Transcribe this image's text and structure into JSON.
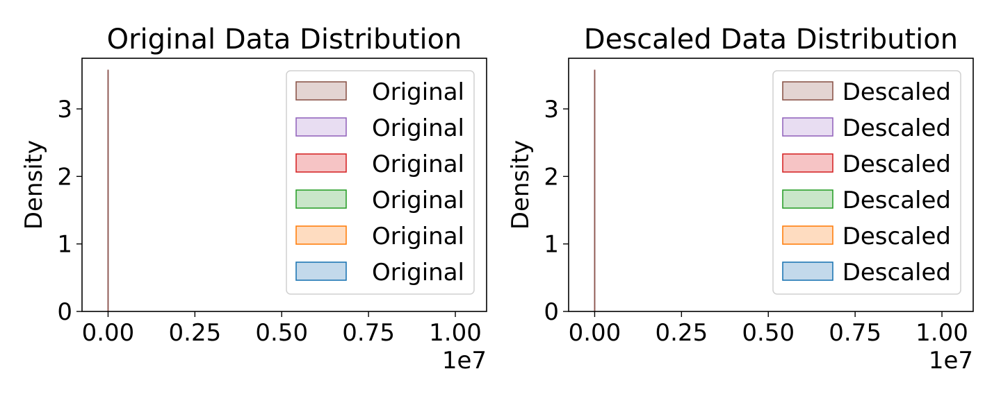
{
  "chart_data": [
    {
      "type": "area",
      "title": "Original Data Distribution",
      "xlabel": "",
      "ylabel": "Density",
      "x_offset_label": "1e7",
      "xlim": [
        -0.075,
        1.09
      ],
      "ylim": [
        0,
        3.75
      ],
      "xticks": [
        0.0,
        0.25,
        0.5,
        0.75,
        1.0
      ],
      "xtick_labels": [
        "0.00",
        "0.25",
        "0.50",
        "0.75",
        "1.00"
      ],
      "yticks": [
        0,
        1,
        2,
        3
      ],
      "ytick_labels": [
        "0",
        "1",
        "2",
        "3"
      ],
      "legend_position": "upper right",
      "grid": false,
      "spike": {
        "x": 0.0,
        "y": 3.58
      },
      "series": [
        {
          "name": "Original",
          "color": "#8c564b",
          "fill": "#e3d4d2"
        },
        {
          "name": "Original",
          "color": "#9467bd",
          "fill": "#e8ddf2"
        },
        {
          "name": "Original",
          "color": "#d62728",
          "fill": "#f6c4c5"
        },
        {
          "name": "Original",
          "color": "#2ca02c",
          "fill": "#c9e6c9"
        },
        {
          "name": "Original",
          "color": "#ff7f0e",
          "fill": "#fedcc0"
        },
        {
          "name": "Original",
          "color": "#1f77b4",
          "fill": "#c3d9eb"
        }
      ]
    },
    {
      "type": "area",
      "title": "Descaled Data Distribution",
      "xlabel": "",
      "ylabel": "Density",
      "x_offset_label": "1e7",
      "xlim": [
        -0.075,
        1.09
      ],
      "ylim": [
        0,
        3.75
      ],
      "xticks": [
        0.0,
        0.25,
        0.5,
        0.75,
        1.0
      ],
      "xtick_labels": [
        "0.00",
        "0.25",
        "0.50",
        "0.75",
        "1.00"
      ],
      "yticks": [
        0,
        1,
        2,
        3
      ],
      "ytick_labels": [
        "0",
        "1",
        "2",
        "3"
      ],
      "legend_position": "upper right",
      "grid": false,
      "spike": {
        "x": 0.0,
        "y": 3.58
      },
      "series": [
        {
          "name": "Descaled",
          "color": "#8c564b",
          "fill": "#e3d4d2"
        },
        {
          "name": "Descaled",
          "color": "#9467bd",
          "fill": "#e8ddf2"
        },
        {
          "name": "Descaled",
          "color": "#d62728",
          "fill": "#f6c4c5"
        },
        {
          "name": "Descaled",
          "color": "#2ca02c",
          "fill": "#c9e6c9"
        },
        {
          "name": "Descaled",
          "color": "#ff7f0e",
          "fill": "#fedcc0"
        },
        {
          "name": "Descaled",
          "color": "#1f77b4",
          "fill": "#c3d9eb"
        }
      ]
    }
  ]
}
